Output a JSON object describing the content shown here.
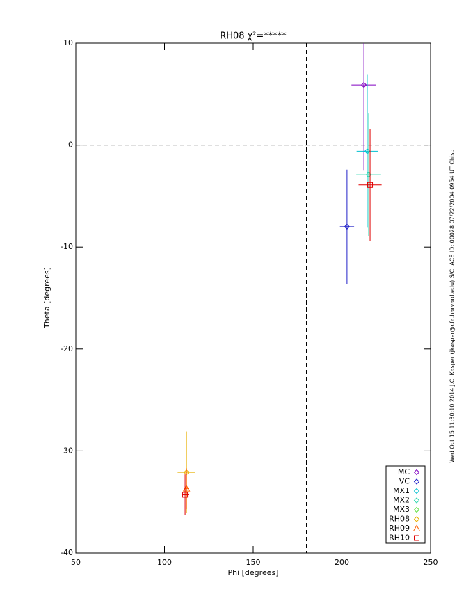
{
  "chart_data": {
    "type": "scatter",
    "title": "RH08 χ²=*****",
    "x_label": "Phi [degrees]",
    "y_label": "Theta [degrees]",
    "side_note": "Wed Oct 15 11:30:10 2014   J.C. Kasper (jkasper@cfa.harvard.edu)   S/C: ACE ID: 00028 07/22/2004  0954 UT Chisq",
    "xlim": [
      50,
      250
    ],
    "xticks": [
      50,
      100,
      150,
      200,
      250
    ],
    "ylim": [
      -40,
      10
    ],
    "yticks": [
      -40,
      -30,
      -20,
      -10,
      0,
      10
    ],
    "reference_x": 180,
    "reference_y": 0,
    "series": [
      {
        "name": "MC",
        "color": "#8000c0",
        "symbol": "diamond",
        "points": [
          {
            "x": 212.4,
            "y": 5.9,
            "xerr": 7,
            "yerr": 8.4
          }
        ]
      },
      {
        "name": "VC",
        "color": "#2020c8",
        "symbol": "diamond",
        "points": [
          {
            "x": 202.9,
            "y": -8.0,
            "xerr": 4,
            "yerr": 5.6
          }
        ]
      },
      {
        "name": "MX1",
        "color": "#00c0d0",
        "symbol": "diamond",
        "points": [
          {
            "x": 214.3,
            "y": -0.6,
            "xerr": 6,
            "yerr": 7.5
          }
        ]
      },
      {
        "name": "MX2",
        "color": "#30d8b0",
        "symbol": "diamond",
        "points": [
          {
            "x": 215.1,
            "y": -2.9,
            "xerr": 7,
            "yerr": 6
          }
        ]
      },
      {
        "name": "MX3",
        "color": "#60e040",
        "symbol": "diamond",
        "points": []
      },
      {
        "name": "RH08",
        "color": "#e8b000",
        "symbol": "diamond",
        "points": [
          {
            "x": 112.4,
            "y": -32.1,
            "xerr": 5,
            "yerr": 4
          }
        ]
      },
      {
        "name": "RH09",
        "color": "#ff6000",
        "symbol": "triangle",
        "points": [
          {
            "x": 112.4,
            "y": -33.7,
            "xerr": 1.5,
            "yerr": 2
          }
        ]
      },
      {
        "name": "RH10",
        "color": "#e00000",
        "symbol": "square",
        "points": [
          {
            "x": 111.6,
            "y": -34.3,
            "xerr": 2,
            "yerr": 2
          },
          {
            "x": 215.9,
            "y": -3.9,
            "xerr": 6.5,
            "yerr": 5.5
          }
        ]
      }
    ]
  }
}
